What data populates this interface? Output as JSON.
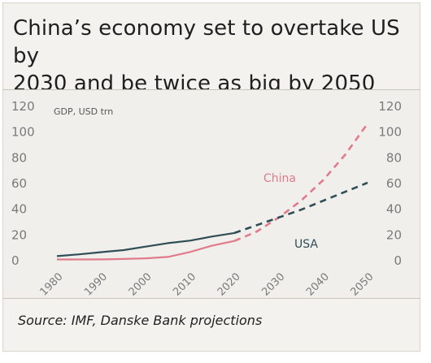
{
  "header": {
    "title_line1": "China’s economy set to overtake US by",
    "title_line2": "2030 and be twice as big by 2050"
  },
  "footer": {
    "source": "Source: IMF, Danske Bank projections"
  },
  "colors": {
    "china": "#e07b8c",
    "usa": "#2e4e55",
    "text": "#7a7a7a"
  },
  "chart_data": {
    "type": "line",
    "ylabel": "GDP, USD trn",
    "ylim": [
      0,
      120
    ],
    "yticks": [
      0,
      20,
      40,
      60,
      80,
      100,
      120
    ],
    "xlim": [
      1980,
      2050
    ],
    "xticks": [
      1980,
      1990,
      2000,
      2010,
      2020,
      2030,
      2040,
      2050
    ],
    "series": [
      {
        "name": "China",
        "actual": {
          "x": [
            1980,
            1985,
            1990,
            1995,
            2000,
            2005,
            2010,
            2015,
            2020
          ],
          "y": [
            0.3,
            0.3,
            0.4,
            0.7,
            1.2,
            2.3,
            6.1,
            11.1,
            14.7
          ]
        },
        "projection": {
          "x": [
            2020,
            2025,
            2030,
            2035,
            2040,
            2045,
            2050
          ],
          "y": [
            14.7,
            22,
            33,
            46,
            62,
            82,
            106
          ]
        }
      },
      {
        "name": "USA",
        "actual": {
          "x": [
            1980,
            1985,
            1990,
            1995,
            2000,
            2005,
            2010,
            2015,
            2020
          ],
          "y": [
            2.9,
            4.3,
            6,
            7.6,
            10.3,
            13,
            15,
            18.2,
            20.9
          ]
        },
        "projection": {
          "x": [
            2020,
            2025,
            2030,
            2035,
            2040,
            2045,
            2050
          ],
          "y": [
            20.9,
            27,
            33,
            39,
            46,
            53,
            60
          ]
        }
      }
    ]
  }
}
